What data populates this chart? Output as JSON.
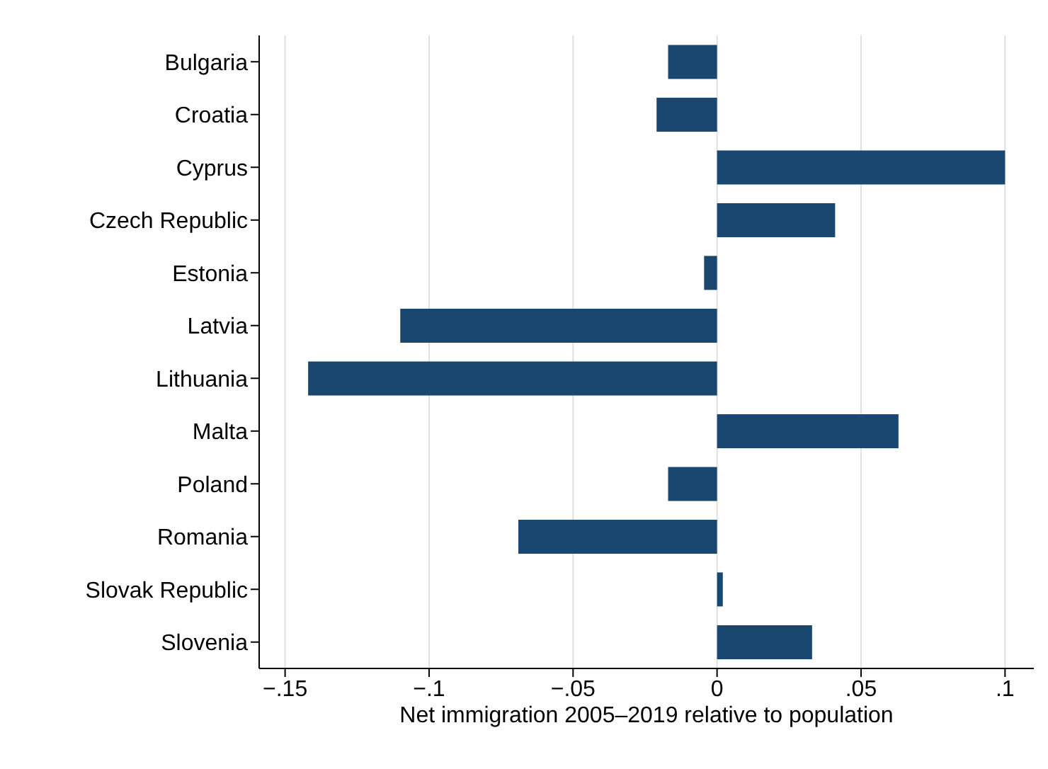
{
  "chart_data": {
    "type": "bar",
    "orientation": "horizontal",
    "xlabel": "Net immigration 2005–2019 relative to population",
    "categories": [
      "Bulgaria",
      "Croatia",
      "Cyprus",
      "Czech Republic",
      "Estonia",
      "Latvia",
      "Lithuania",
      "Malta",
      "Poland",
      "Romania",
      "Slovak Republic",
      "Slovenia"
    ],
    "values": [
      -0.017,
      -0.021,
      0.1,
      0.041,
      -0.0045,
      -0.11,
      -0.142,
      0.063,
      -0.017,
      -0.069,
      0.002,
      0.033
    ],
    "color": "#1a476f",
    "xlim": [
      -0.159,
      0.11
    ],
    "xticks": [
      {
        "value": -0.15,
        "label": "−.15"
      },
      {
        "value": -0.1,
        "label": "−.1"
      },
      {
        "value": -0.05,
        "label": "−.05"
      },
      {
        "value": 0,
        "label": "0"
      },
      {
        "value": 0.05,
        "label": ".05"
      },
      {
        "value": 0.1,
        "label": ".1"
      }
    ],
    "grid": "x"
  }
}
